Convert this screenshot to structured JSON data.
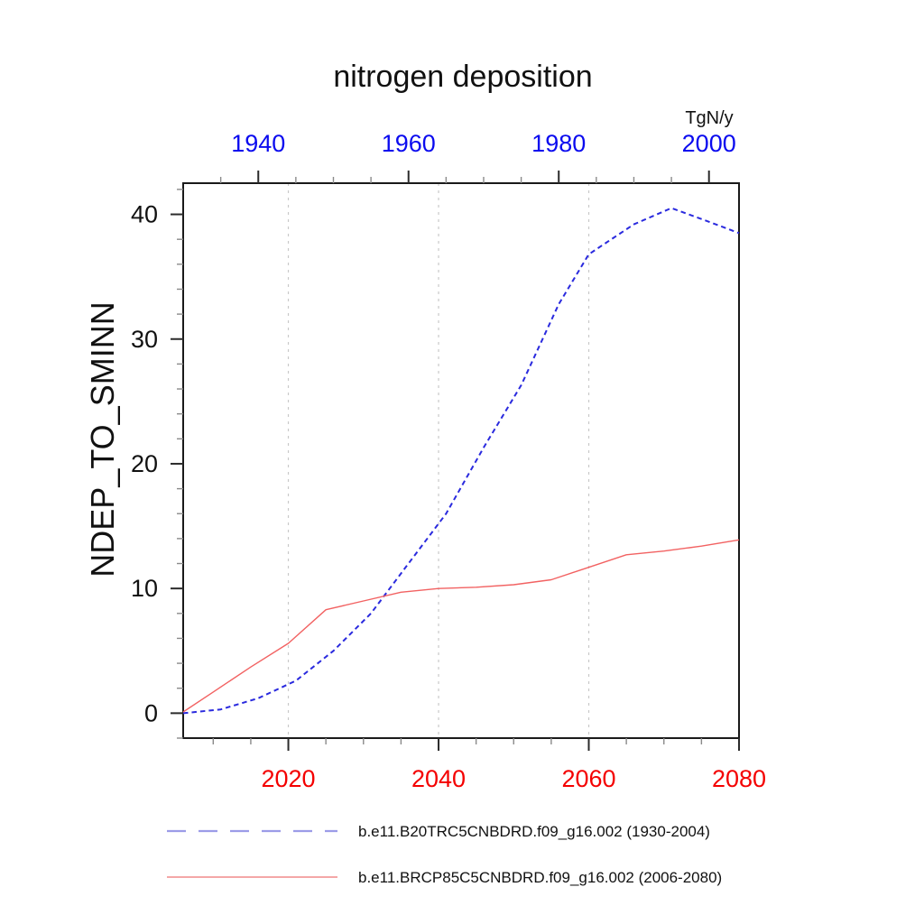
{
  "title": "nitrogen deposition",
  "chart_data": {
    "type": "line",
    "title": "nitrogen deposition",
    "units": "TgN/y",
    "ylabel": "NDEP_TO_SMINN",
    "grid": "vertical dashed gridlines",
    "legend_position": "bottom-left",
    "top_axis": {
      "label_color": "#0b0bef",
      "ticks": [
        1940,
        1960,
        1980,
        2000
      ],
      "range": [
        1930,
        2004
      ],
      "minor_step": 5
    },
    "bottom_axis": {
      "label_color": "#f40000",
      "ticks": [
        2020,
        2040,
        2060,
        2080
      ],
      "range": [
        2006,
        2080
      ],
      "minor_step": 5
    },
    "y_axis": {
      "label_color": "#111111",
      "ticks": [
        0,
        10,
        20,
        30,
        40
      ],
      "range": [
        -2,
        42.5
      ],
      "minor_step": 2
    },
    "gridline_years_bottom_axis": [
      2020,
      2040,
      2060
    ],
    "series": [
      {
        "name": "b.e11.B20TRC5CNBDRD.f09_g16.002 (1930-2004)",
        "axis": "top",
        "style": "dashed",
        "color": "#2a2ade",
        "legend_color": "#9c9ce8",
        "x": [
          1930,
          1935,
          1940,
          1945,
          1950,
          1955,
          1960,
          1965,
          1970,
          1975,
          1980,
          1984,
          1990,
          1995,
          2000,
          2004
        ],
        "y": [
          0.0,
          0.3,
          1.2,
          2.6,
          5.0,
          8.0,
          12.0,
          16.0,
          21.3,
          26.3,
          32.8,
          36.8,
          39.2,
          40.5,
          39.4,
          38.5
        ]
      },
      {
        "name": "b.e11.BRCP85C5CNBDRD.f09_g16.002 (2006-2080)",
        "axis": "bottom",
        "style": "solid",
        "color": "#f26262",
        "legend_color": "#f08a8a",
        "x": [
          2006,
          2010,
          2015,
          2020,
          2025,
          2030,
          2035,
          2040,
          2045,
          2050,
          2055,
          2060,
          2065,
          2070,
          2075,
          2080
        ],
        "y": [
          0.1,
          1.7,
          3.7,
          5.6,
          8.3,
          9.0,
          9.7,
          10.0,
          10.1,
          10.3,
          10.7,
          11.7,
          12.7,
          13.0,
          13.4,
          13.9
        ]
      }
    ]
  }
}
